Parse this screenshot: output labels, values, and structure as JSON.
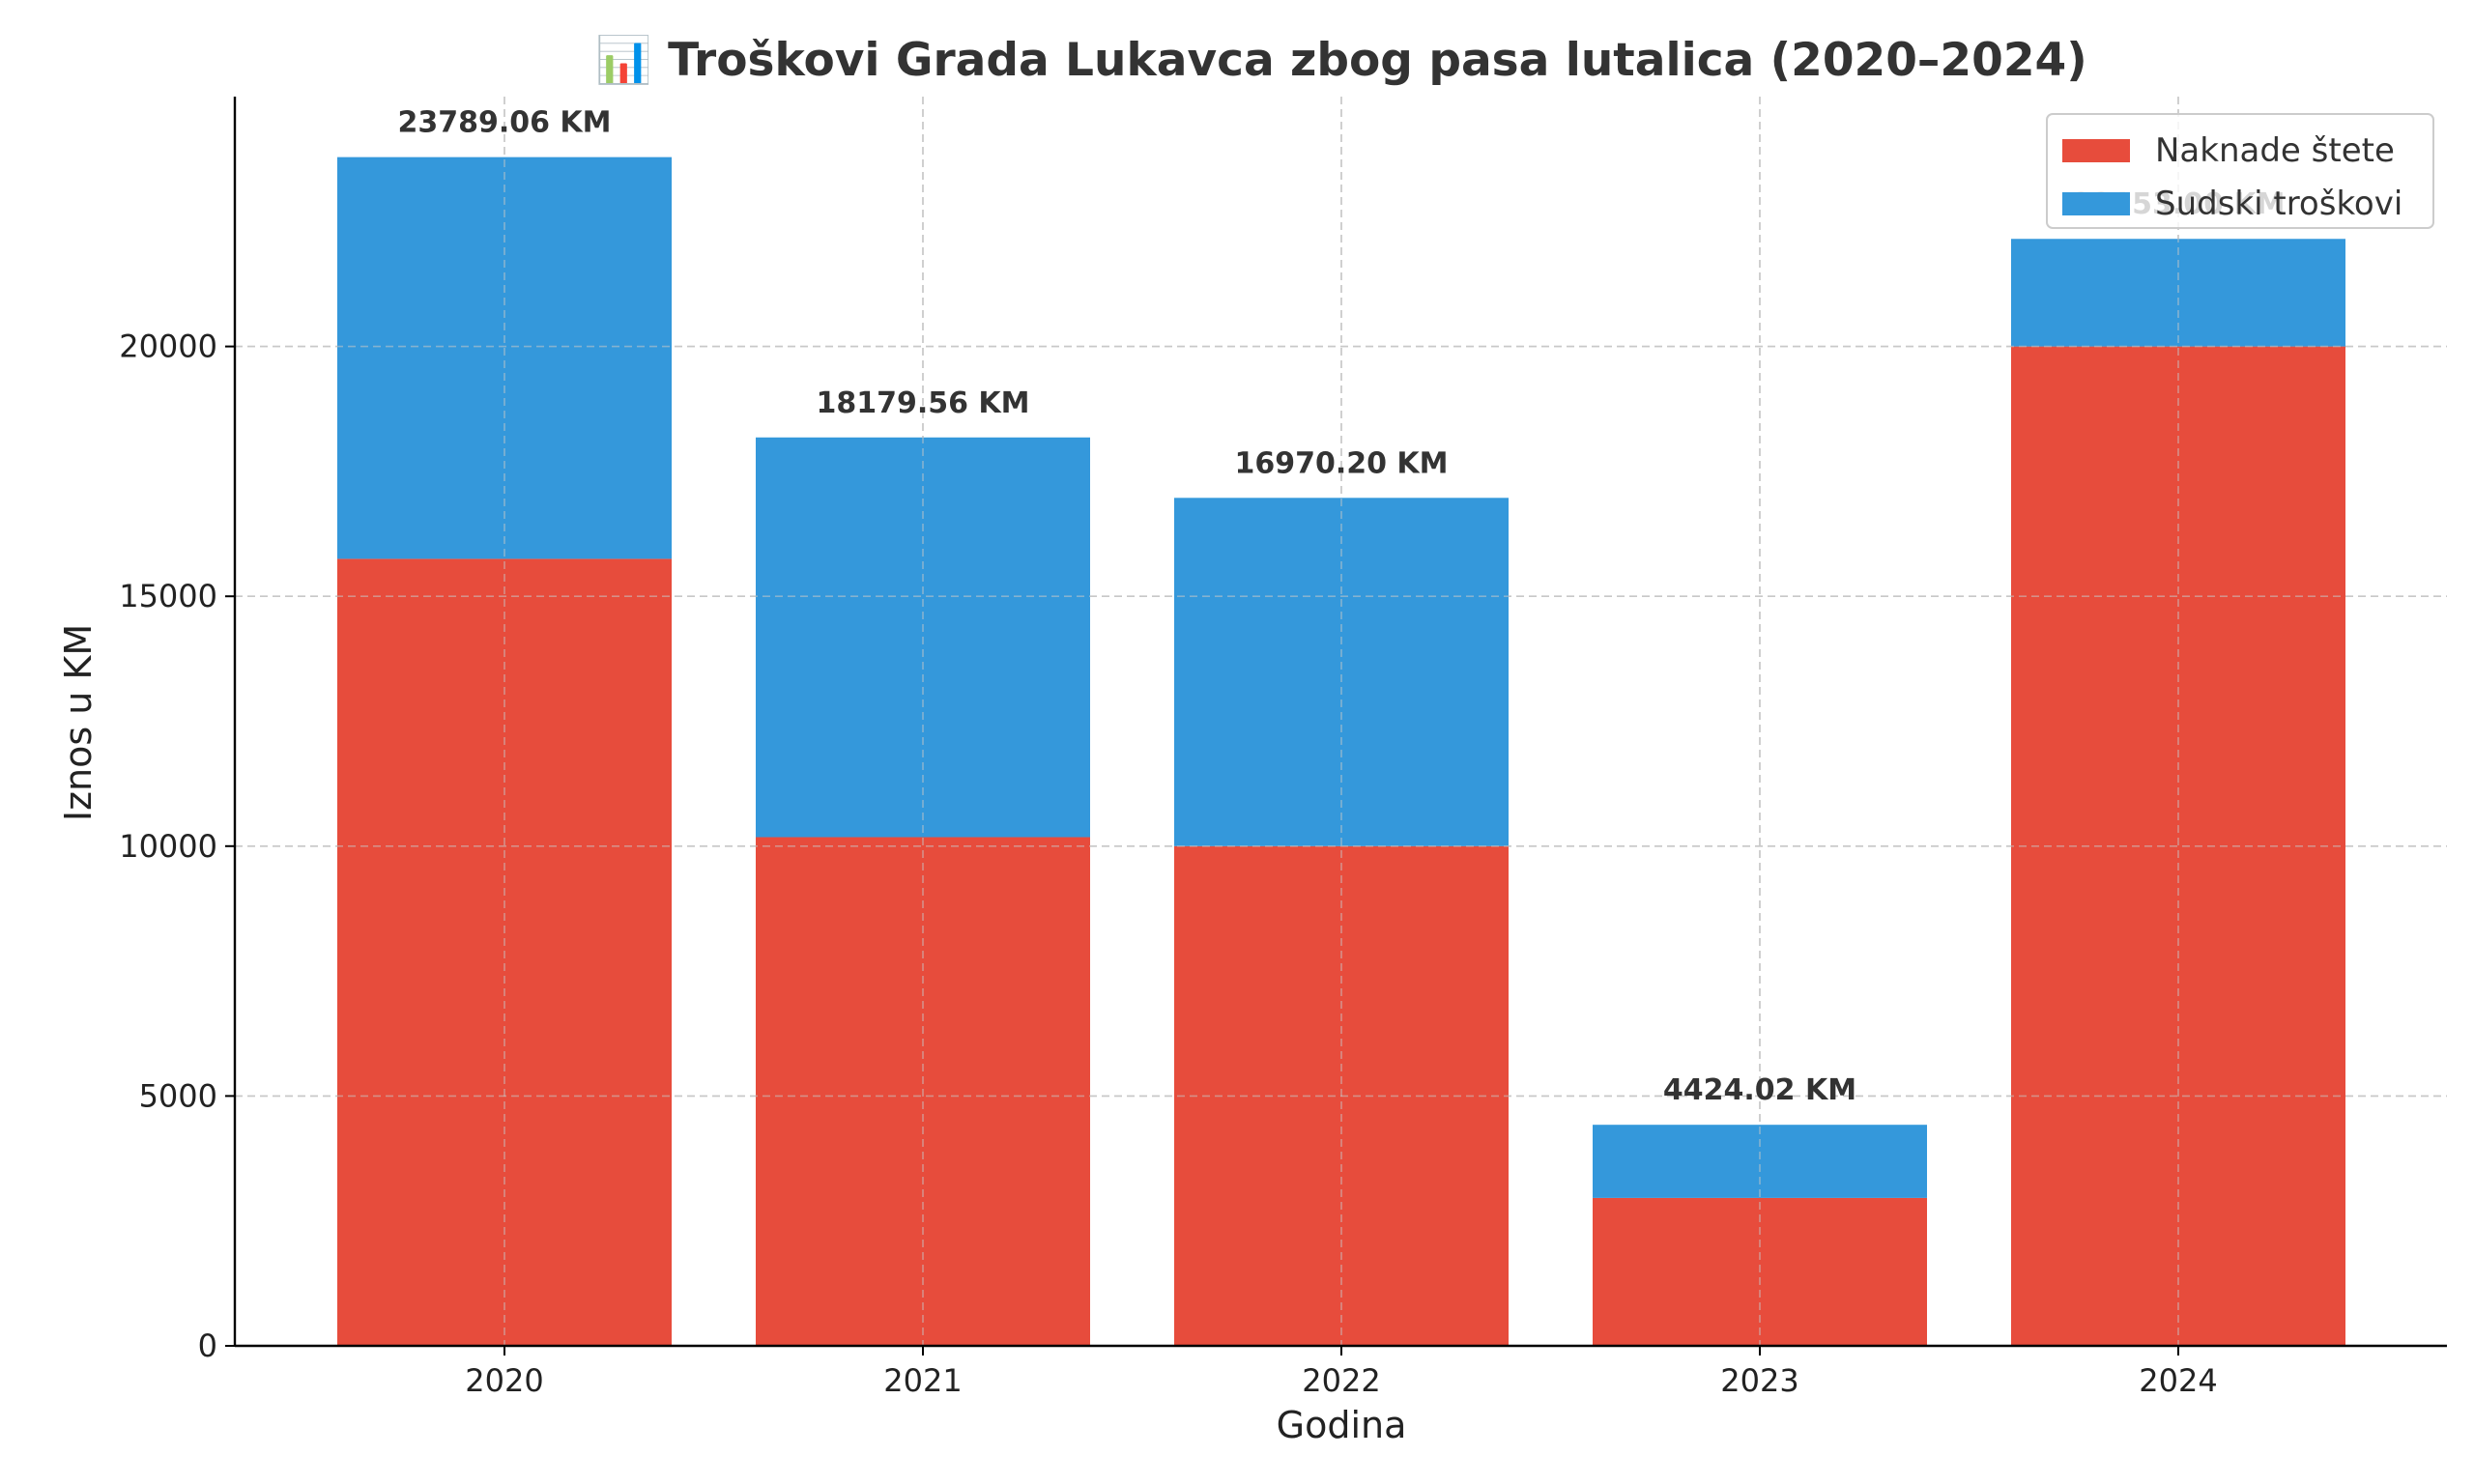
{
  "chart_data": {
    "type": "bar",
    "stacked": true,
    "title": "📊 Troškovi Grada Lukavca zbog pasa lutalica (2020–2024)",
    "xlabel": "Godina",
    "ylabel": "Iznos u KM",
    "categories": [
      "2020",
      "2021",
      "2022",
      "2023",
      "2024"
    ],
    "series": [
      {
        "name": "Naknade štete",
        "color": "#e74c3c",
        "values": [
          15750,
          10180,
          10000,
          2960,
          20000
        ]
      },
      {
        "name": "Sudski troškovi",
        "color": "#3498db",
        "values": [
          8039.06,
          7999.56,
          6970.2,
          1464.02,
          2153
        ]
      }
    ],
    "total_labels": [
      "23789.06 KM",
      "18179.56 KM",
      "16970.20 KM",
      "4424.02 KM",
      "22153.00 KM"
    ],
    "ylim": [
      0,
      25000
    ],
    "yticks": [
      0,
      5000,
      10000,
      15000,
      20000
    ],
    "grid": true,
    "legend_position": "top-right"
  }
}
